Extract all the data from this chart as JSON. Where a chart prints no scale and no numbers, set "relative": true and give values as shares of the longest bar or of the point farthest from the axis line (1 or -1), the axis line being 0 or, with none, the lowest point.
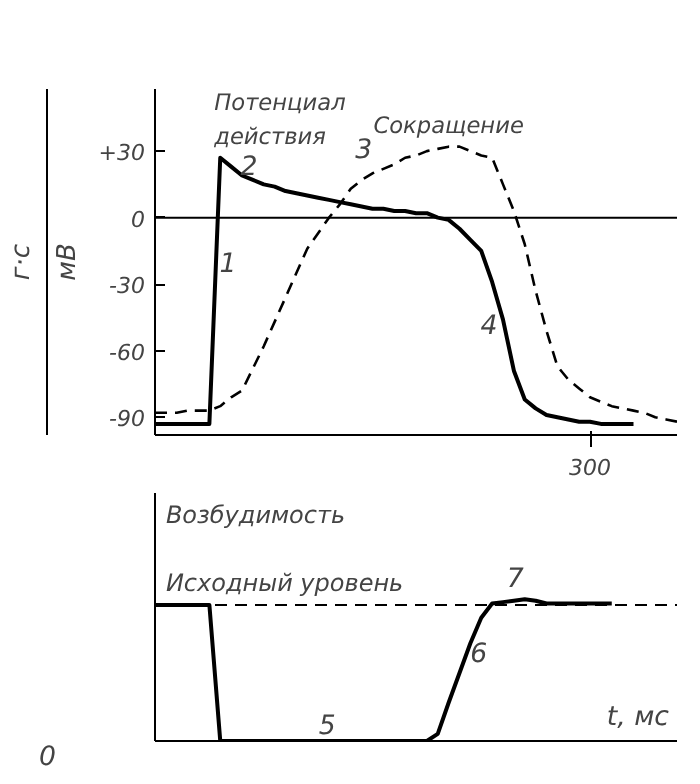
{
  "chart_data": [
    {
      "type": "line",
      "ylabel": "мВ",
      "y2label": "г·с",
      "categories": [
        null,
        null,
        null,
        null,
        null,
        null,
        null,
        null,
        null,
        null,
        null,
        null,
        null,
        null,
        null,
        null,
        null,
        null,
        null,
        null,
        null,
        null,
        null,
        null,
        null,
        null,
        null,
        null,
        null,
        null,
        null,
        null,
        null,
        null,
        null,
        null,
        null,
        null,
        null,
        null,
        "300",
        null,
        null,
        null,
        null,
        null,
        null,
        null,
        null
      ],
      "ylim": [
        -98,
        58
      ],
      "yticks": [
        {
          "value": 30,
          "label": "+30"
        },
        0,
        -30,
        -60,
        -90
      ],
      "grid": false,
      "ref_lines": [
        {
          "axis": "y",
          "value": 0,
          "color": "#000000",
          "line_style": "solid"
        }
      ],
      "series": [
        {
          "name": "Потенциал действия",
          "color": "#000000",
          "line_style": "solid",
          "values": [
            -93,
            -93,
            -93,
            -93,
            -93,
            -93,
            27,
            23,
            19,
            17,
            15,
            14,
            12,
            11,
            10,
            9,
            8,
            7,
            6,
            5,
            4,
            4,
            3,
            3,
            2,
            2,
            0,
            -1,
            -5,
            -10,
            -15,
            -29,
            -46,
            -69,
            -82,
            -86,
            -89,
            -90,
            -91,
            -92,
            -92,
            -93,
            -93,
            -93,
            -93,
            null,
            null,
            null,
            null
          ]
        },
        {
          "name": "Сокращение",
          "color": "#000000",
          "line_style": "dashed",
          "values": [
            -88,
            -88,
            -88,
            -87,
            -87,
            -87,
            -85,
            -81,
            -78,
            -68,
            -58,
            -47,
            -36,
            -25,
            -14,
            -7,
            0,
            6,
            13,
            17,
            20,
            22,
            24,
            27,
            28,
            30,
            31,
            32,
            32,
            30,
            28,
            27,
            15,
            3,
            -12,
            -33,
            -51,
            -67,
            -73,
            -77,
            -81,
            -83,
            -85,
            -86,
            -87,
            -88,
            -90,
            -91,
            -92
          ]
        }
      ],
      "annotations": [
        "1",
        "2",
        "3",
        "4"
      ]
    },
    {
      "type": "line",
      "title": "Возбудимость",
      "xlabel": "t, мс",
      "relative": true,
      "grid": false,
      "categories": [
        null,
        null,
        null,
        null,
        null,
        null,
        null,
        null,
        null,
        null,
        null,
        null,
        null,
        null,
        null,
        null,
        null,
        null,
        null,
        null,
        null,
        null,
        null,
        null,
        null,
        null,
        null,
        null,
        null,
        null,
        null,
        null,
        null,
        null,
        null,
        null,
        null,
        null,
        null,
        null,
        null,
        null,
        null,
        null,
        null,
        null,
        null,
        null,
        null
      ],
      "ref_lines": [
        {
          "axis": "y",
          "value": 0.96,
          "label": "Исходный уровень",
          "color": "#000000",
          "line_style": "dashed"
        }
      ],
      "series": [
        {
          "color": "#000000",
          "line_style": "solid",
          "values": [
            0.96,
            0.96,
            0.96,
            0.96,
            0.96,
            0.96,
            0,
            0,
            0,
            0,
            0,
            0,
            0,
            0,
            0,
            0,
            0,
            0,
            0,
            0,
            0,
            0,
            0,
            0,
            0,
            0,
            0.05,
            0.27,
            0.48,
            0.69,
            0.87,
            0.97,
            0.98,
            0.99,
            1,
            0.99,
            0.97,
            0.97,
            0.97,
            0.97,
            0.97,
            0.97,
            0.97,
            null,
            null,
            null,
            null,
            null,
            null
          ]
        }
      ],
      "annotations": [
        "0",
        "5",
        "6",
        "7"
      ]
    }
  ]
}
